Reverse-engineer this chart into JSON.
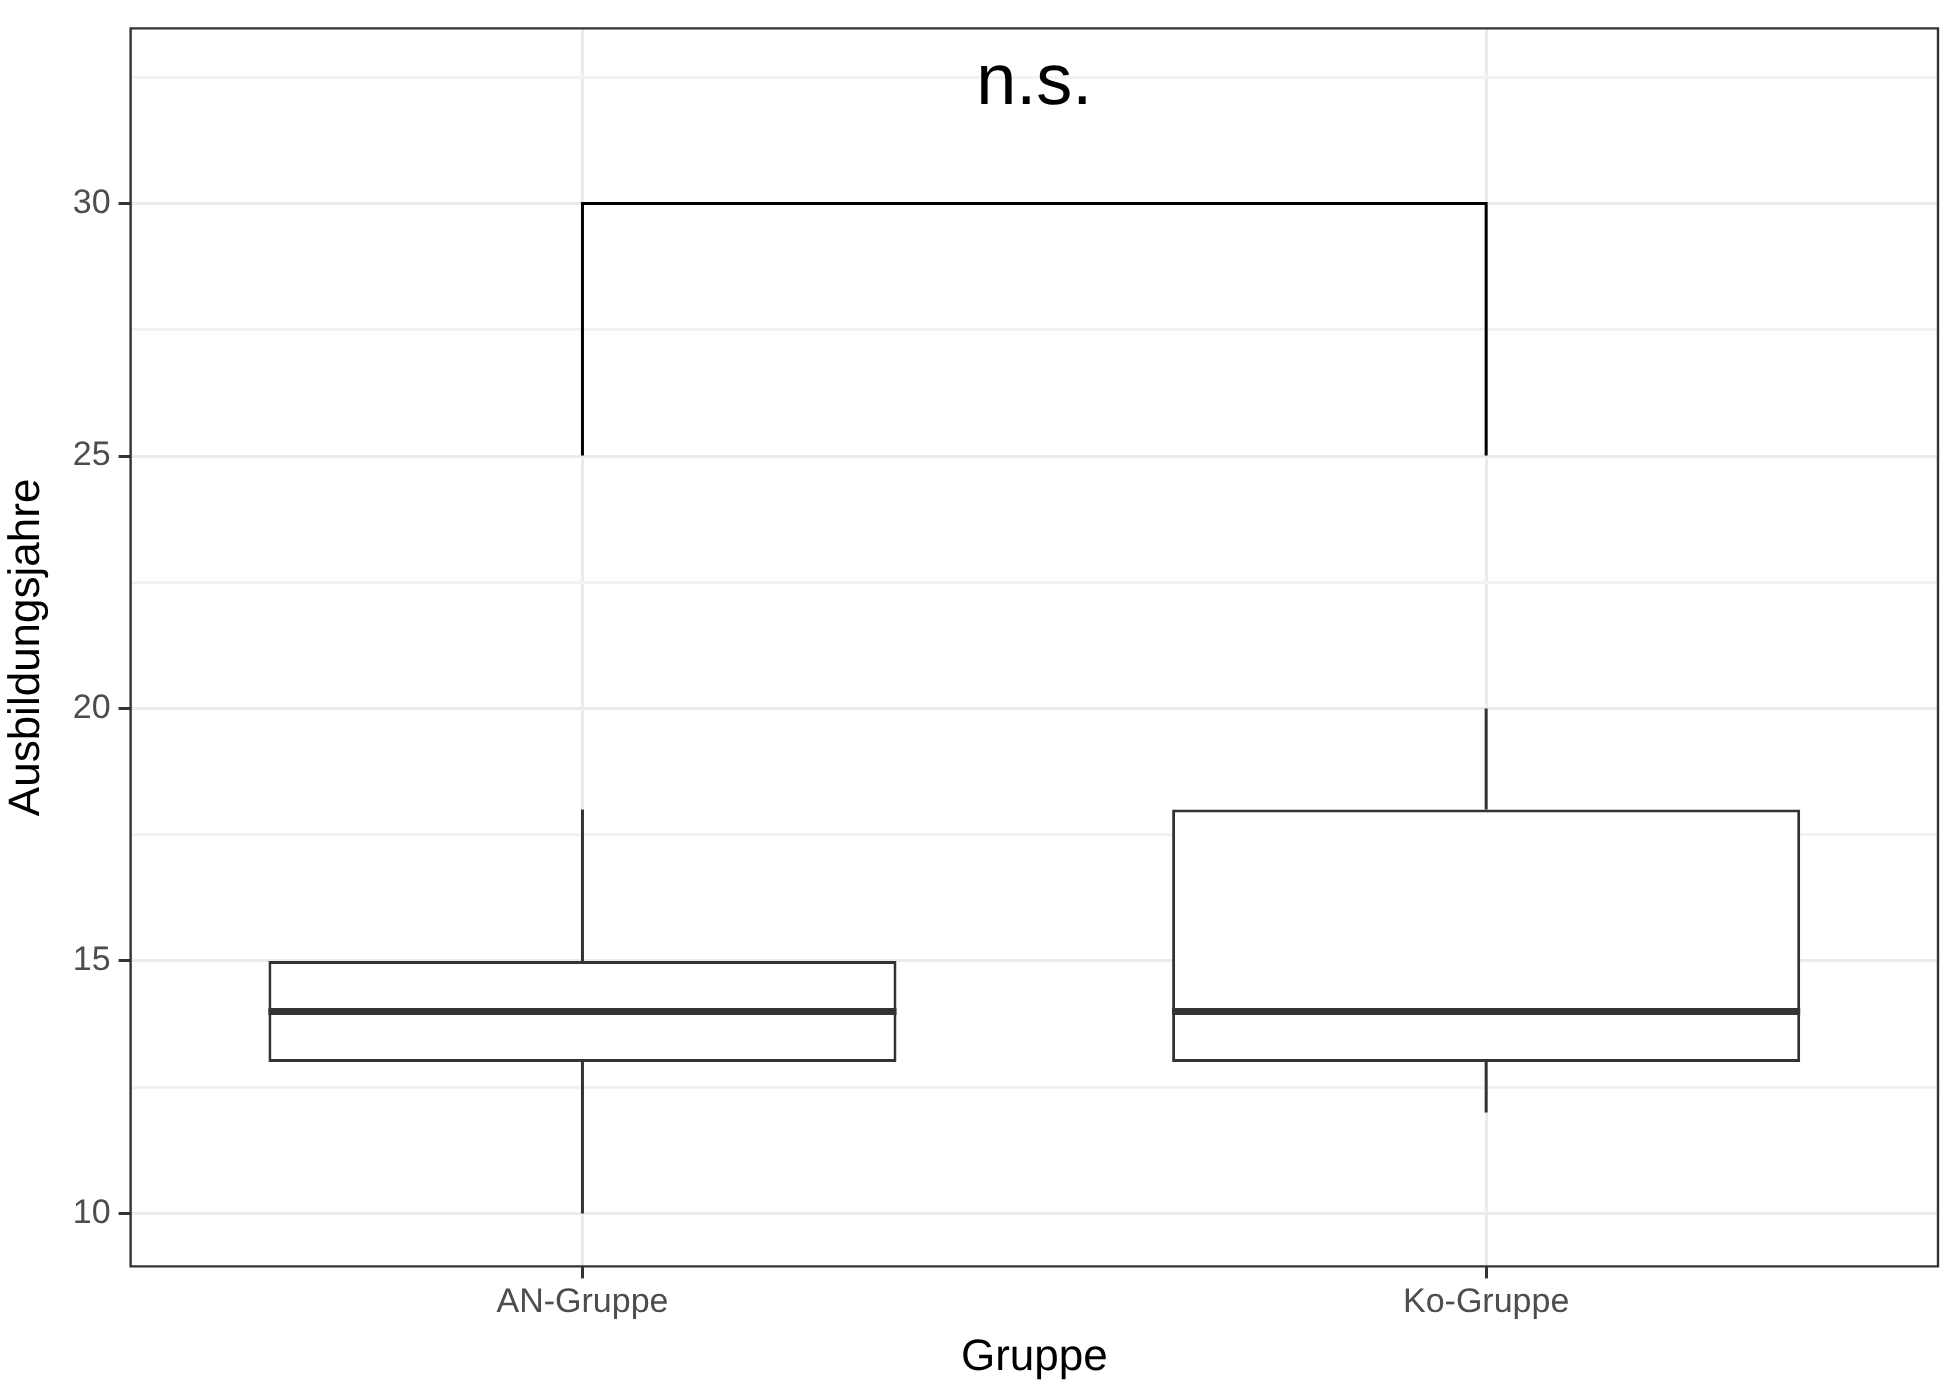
{
  "chart_data": {
    "type": "box",
    "xlabel": "Gruppe",
    "ylabel": "Ausbildungsjahre",
    "categories": [
      "AN-Gruppe",
      "Ko-Gruppe"
    ],
    "boxes": [
      {
        "low": 10,
        "q1": 13,
        "median": 14,
        "q3": 15,
        "high": 18
      },
      {
        "low": 12,
        "q1": 13,
        "median": 14,
        "q3": 18,
        "high": 20
      }
    ],
    "ylim": [
      8.95,
      33.47
    ],
    "yticks": [
      10,
      {
        "value": 12.5,
        "label": null
      },
      15,
      {
        "value": 17.5,
        "label": null
      },
      20,
      {
        "value": 22.5,
        "label": null
      },
      25,
      {
        "value": 27.5,
        "label": null
      },
      30,
      {
        "value": 32.5,
        "label": null
      }
    ],
    "grid": true,
    "legend": false,
    "annotations": [
      "n.s."
    ]
  }
}
